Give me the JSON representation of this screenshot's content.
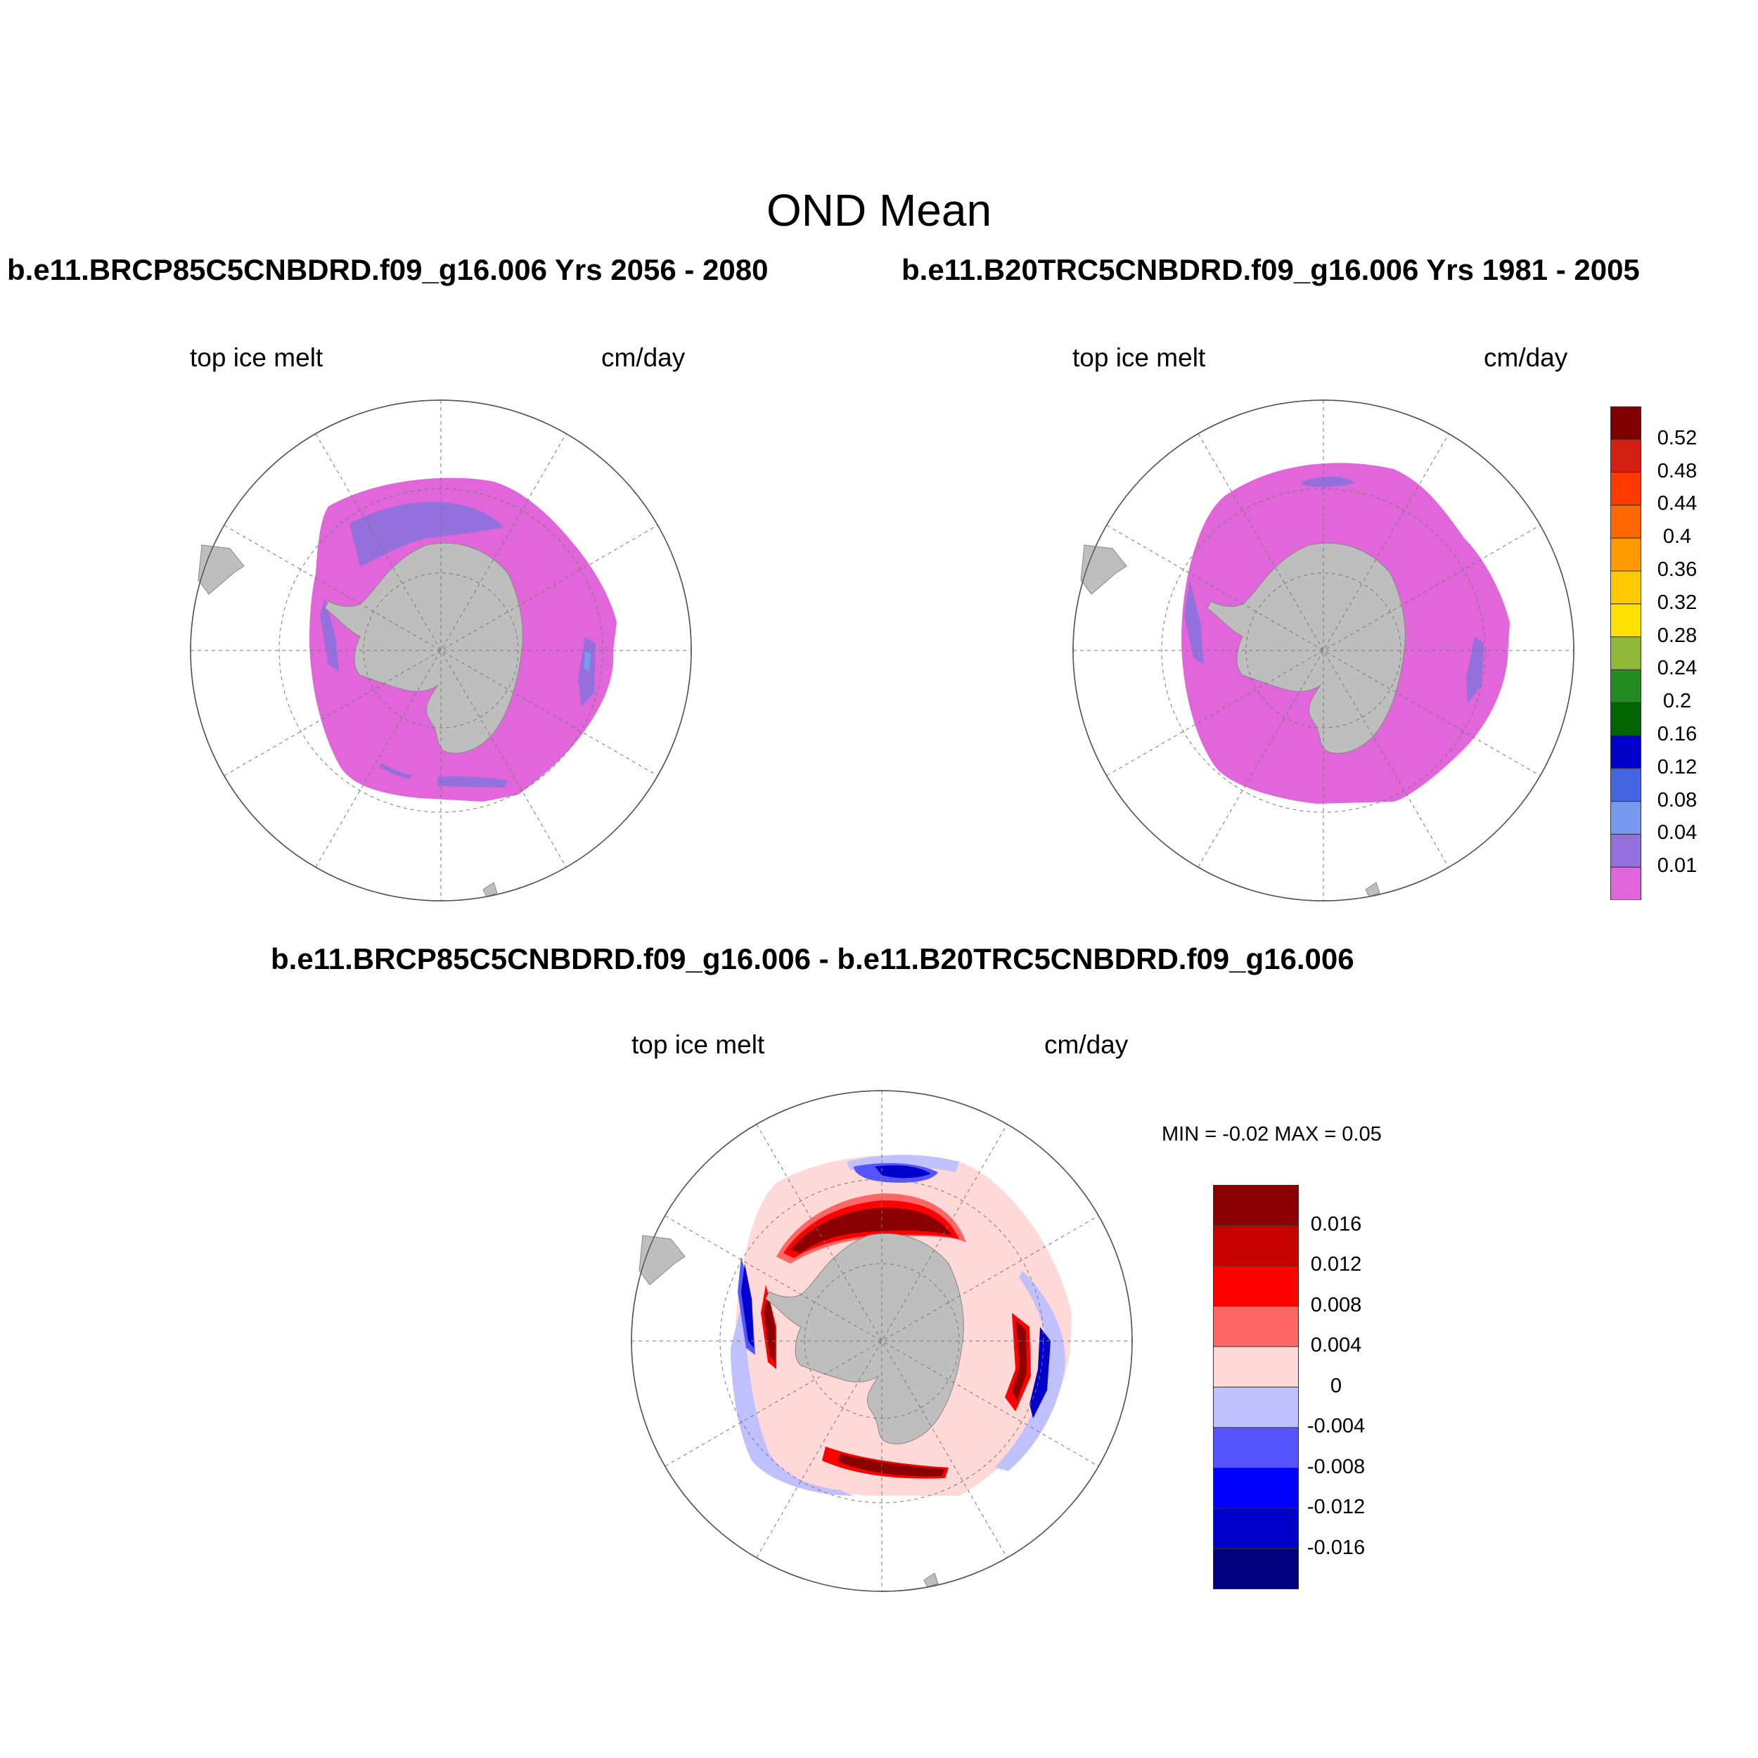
{
  "figure": {
    "title": "OND Mean",
    "panel1": {
      "run_title": "b.e11.BRCP85C5CNBDRD.f09_g16.006  Yrs 2056 - 2080",
      "left_label": "top ice melt",
      "right_label": "cm/day"
    },
    "panel2": {
      "run_title": "b.e11.B20TRC5CNBDRD.f09_g16.006  Yrs 1981 - 2005",
      "left_label": "top ice melt",
      "right_label": "cm/day"
    },
    "panel3": {
      "run_title": "b.e11.BRCP85C5CNBDRD.f09_g16.006 - b.e11.B20TRC5CNBDRD.f09_g16.006",
      "left_label": "top ice melt",
      "right_label": "cm/day",
      "min_max": "MIN =  -0.02 MAX =   0.05"
    }
  },
  "chart_data": [
    {
      "type": "heatmap",
      "projection": "south polar stereographic",
      "variable": "top ice melt",
      "units": "cm/day",
      "colorbar": {
        "levels": [
          "0.01",
          "0.04",
          "0.08",
          "0.12",
          "0.16",
          "0.2",
          "0.24",
          "0.28",
          "0.32",
          "0.36",
          "0.4",
          "0.44",
          "0.48",
          "0.52"
        ],
        "colors": [
          "#e066d9",
          "#9370db",
          "#7799ee",
          "#4466e0",
          "#0000cc",
          "#006400",
          "#228b22",
          "#90b838",
          "#ffe000",
          "#ffc800",
          "#ff9a00",
          "#ff6800",
          "#ff3a00",
          "#d42010",
          "#800000"
        ]
      }
    },
    {
      "type": "heatmap",
      "projection": "south polar stereographic",
      "variable": "top ice melt",
      "units": "cm/day",
      "colorbar": {
        "levels": [
          "0.016",
          "0.012",
          "0.008",
          "0.004",
          "0",
          "-0.004",
          "-0.008",
          "-0.012",
          "-0.016"
        ],
        "colors": [
          "#8b0000",
          "#c80000",
          "#ff0000",
          "#ff6666",
          "#ffd8d8",
          "#c0c0ff",
          "#5555ff",
          "#0000ff",
          "#0000cc",
          "#000080"
        ]
      },
      "min": -0.02,
      "max": 0.05
    }
  ],
  "colors": {
    "land": "#bebebe",
    "ice_base": "#e066d9",
    "ice_band": "#9370db",
    "ice_light": "#7799ee"
  }
}
